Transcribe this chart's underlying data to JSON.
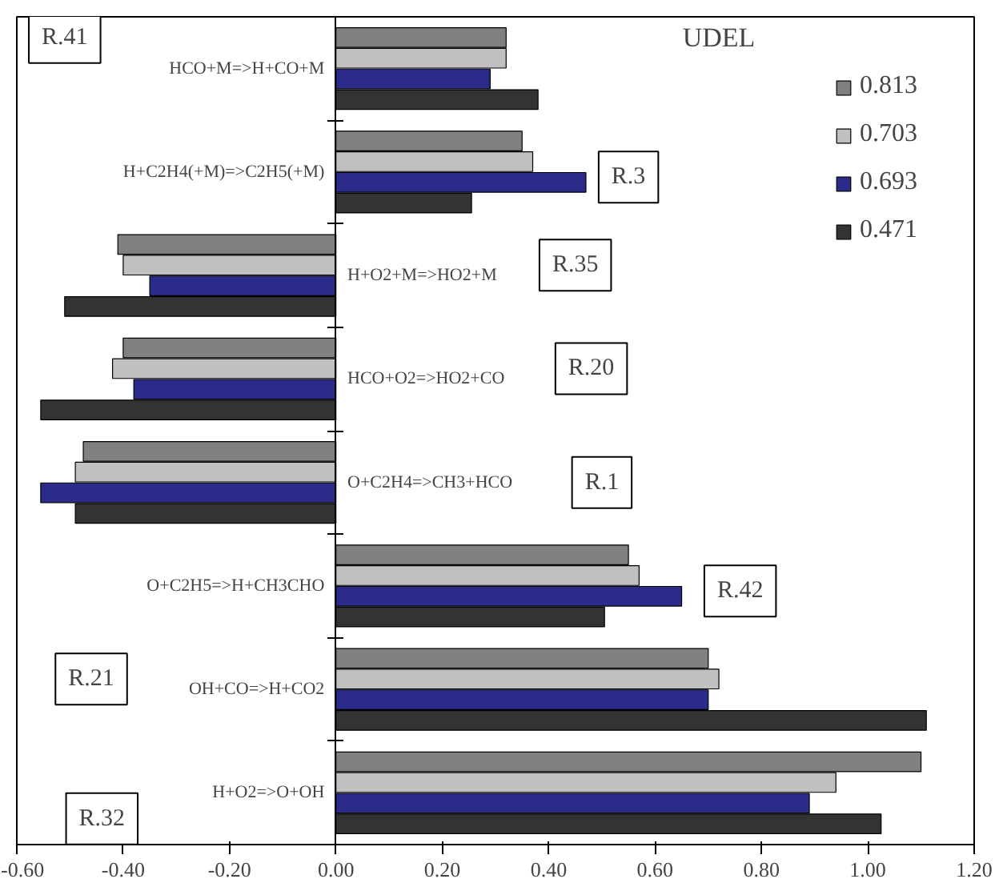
{
  "chart_data": {
    "type": "bar",
    "orientation": "horizontal",
    "categories": [
      "HCO+M=>H+CO+M",
      "H+C2H4(+M)=>C2H5(+M)",
      "H+O2+M=>HO2+M",
      "HCO+O2=>HO2+CO",
      "O+C2H4=>CH3+HCO",
      "O+C2H5=>H+CH3CHO",
      "OH+CO=>H+CO2",
      "H+O2=>O+OH"
    ],
    "series": [
      {
        "name": "0.813",
        "color": "#808080",
        "values": [
          0.32,
          0.35,
          -0.41,
          -0.4,
          -0.475,
          0.55,
          0.7,
          1.1
        ]
      },
      {
        "name": "0.703",
        "color": "#c0c0c0",
        "values": [
          0.32,
          0.37,
          -0.4,
          -0.42,
          -0.49,
          0.57,
          0.72,
          0.94
        ]
      },
      {
        "name": "0.693",
        "color": "#2b2b8a",
        "values": [
          0.29,
          0.47,
          -0.35,
          -0.38,
          -0.555,
          0.65,
          0.7,
          0.89
        ]
      },
      {
        "name": "0.471",
        "color": "#333333",
        "values": [
          0.38,
          0.255,
          -0.51,
          -0.555,
          -0.49,
          0.505,
          1.11,
          1.025
        ]
      }
    ],
    "xlim": [
      -0.6,
      1.2
    ],
    "xticks": [
      {
        "value": -0.6,
        "label": "-0.60"
      },
      {
        "value": -0.4,
        "label": "-0.40"
      },
      {
        "value": -0.2,
        "label": "-0.20"
      },
      {
        "value": 0,
        "label": "0.00"
      },
      {
        "value": 0.2,
        "label": "0.20"
      },
      {
        "value": 0.4,
        "label": "0.40"
      },
      {
        "value": 0.6,
        "label": "0.60"
      },
      {
        "value": 0.8,
        "label": "0.80"
      },
      {
        "value": 1.0,
        "label": "1.00"
      },
      {
        "value": 1.2,
        "label": "1.20"
      }
    ],
    "annotations": [
      "UDEL",
      "R.41",
      "R.3",
      "R.35",
      "R.20",
      "R.1",
      "R.42",
      "R.21",
      "R.32"
    ],
    "legend": "top right",
    "grid": false,
    "tick_labels": "x"
  }
}
